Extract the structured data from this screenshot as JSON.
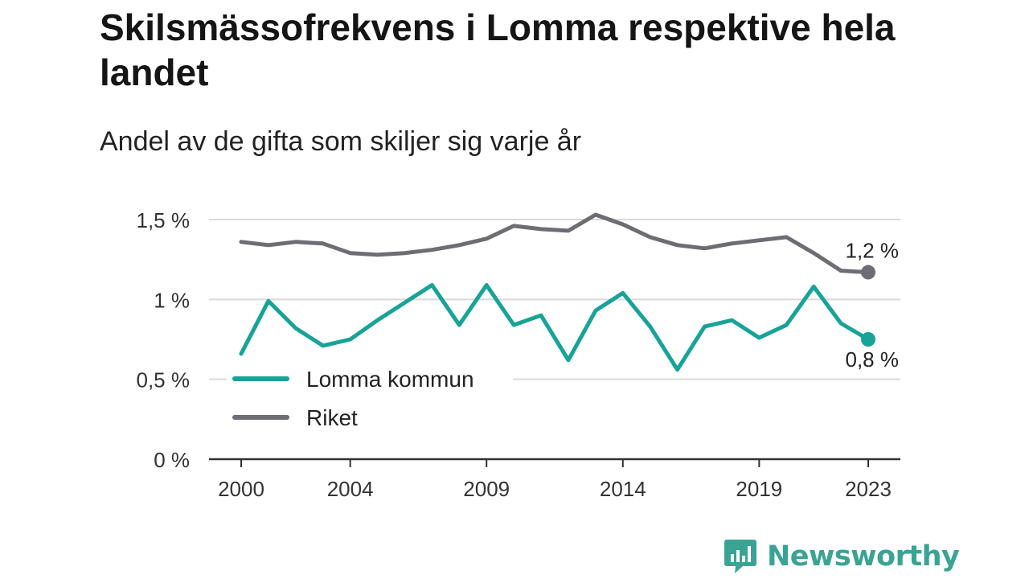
{
  "header": {
    "title": "Skilsmässofrekvens i Lomma respektive hela landet",
    "subtitle": "Andel av de gifta som skiljer sig varje år"
  },
  "brand": {
    "name": "Newsworthy",
    "icon": "newsworthy-logo-icon",
    "color": "#3aa394"
  },
  "chart_data": {
    "type": "line",
    "title": "Skilsmässofrekvens i Lomma respektive hela landet",
    "subtitle": "Andel av de gifta som skiljer sig varje år",
    "x": [
      2000,
      2001,
      2002,
      2003,
      2004,
      2005,
      2006,
      2007,
      2008,
      2009,
      2010,
      2011,
      2012,
      2013,
      2014,
      2015,
      2016,
      2017,
      2018,
      2019,
      2020,
      2021,
      2022,
      2023
    ],
    "x_ticks": [
      2000,
      2004,
      2009,
      2014,
      2019,
      2023
    ],
    "x_tick_labels": [
      "2000",
      "2004",
      "2009",
      "2014",
      "2019",
      "2023"
    ],
    "y_ticks": [
      0,
      0.5,
      1,
      1.5
    ],
    "y_tick_labels": [
      "0 %",
      "0,5 %",
      "1 %",
      "1,5 %"
    ],
    "ylim": [
      0,
      1.5
    ],
    "grid": true,
    "legend_position": "bottom-left",
    "series": [
      {
        "name": "Lomma kommun",
        "color": "#17a398",
        "values": [
          0.66,
          0.99,
          0.82,
          0.71,
          0.75,
          0.87,
          0.98,
          1.09,
          0.84,
          1.09,
          0.84,
          0.9,
          0.62,
          0.93,
          1.04,
          0.83,
          0.56,
          0.83,
          0.87,
          0.76,
          0.84,
          1.08,
          0.85,
          0.75
        ],
        "end_label": "0,8 %"
      },
      {
        "name": "Riket",
        "color": "#6e6d74",
        "values": [
          1.36,
          1.34,
          1.36,
          1.35,
          1.29,
          1.28,
          1.29,
          1.31,
          1.34,
          1.38,
          1.46,
          1.44,
          1.43,
          1.53,
          1.47,
          1.39,
          1.34,
          1.32,
          1.35,
          1.37,
          1.39,
          1.29,
          1.18,
          1.17
        ],
        "end_label": "1,2 %"
      }
    ]
  }
}
